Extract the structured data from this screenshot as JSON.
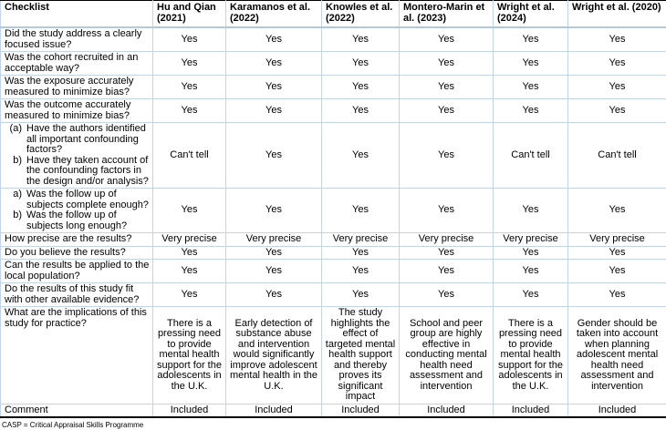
{
  "colors": {
    "grid_line": "#c2d4ea",
    "outer_border": "#000000",
    "background": "#ffffff",
    "text": "#000000"
  },
  "footnote": "CASP = Critical Appraisal Skills Programme",
  "table": {
    "columns": [
      "Checklist",
      "Hu and Qian (2021)",
      "Karamanos et al. (2022)",
      "Knowles et al. (2022)",
      "Montero-Marin et al. (2023)",
      "Wright et al. (2024)",
      "Wright et al. (2020)"
    ],
    "rows": [
      {
        "question": "Did the study address a clearly focused issue?",
        "values": [
          "Yes",
          "Yes",
          "Yes",
          "Yes",
          "Yes",
          "Yes"
        ]
      },
      {
        "question": "Was the cohort recruited in an acceptable way?",
        "values": [
          "Yes",
          "Yes",
          "Yes",
          "Yes",
          "Yes",
          "Yes"
        ]
      },
      {
        "question": "Was the exposure accurately measured to minimize bias?",
        "values": [
          "Yes",
          "Yes",
          "Yes",
          "Yes",
          "Yes",
          "Yes"
        ]
      },
      {
        "question": "Was the outcome accurately measured to minimize bias?",
        "values": [
          "Yes",
          "Yes",
          "Yes",
          "Yes",
          "Yes",
          "Yes"
        ]
      },
      {
        "question_list": [
          {
            "marker": "(a)",
            "text": "Have the authors identified all important confounding factors?"
          },
          {
            "marker": "b)",
            "text": "Have they taken account of the confounding factors in the design and/or analysis?"
          }
        ],
        "values": [
          "Can't tell",
          "Yes",
          "Yes",
          "Yes",
          "Can't tell",
          "Can't tell"
        ]
      },
      {
        "question_list": [
          {
            "marker": "a)",
            "text": "Was the follow up of subjects complete enough?"
          },
          {
            "marker": "b)",
            "text": "Was the follow up of subjects long enough?"
          }
        ],
        "values": [
          "Yes",
          "Yes",
          "Yes",
          "Yes",
          "Yes",
          "Yes"
        ]
      },
      {
        "question": "How precise are the results?",
        "values": [
          "Very precise",
          "Very precise",
          "Very precise",
          "Very precise",
          "Very precise",
          "Very precise"
        ]
      },
      {
        "question": "Do you believe the results?",
        "values": [
          "Yes",
          "Yes",
          "Yes",
          "Yes",
          "Yes",
          "Yes"
        ]
      },
      {
        "question": "Can the results be applied to the local population?",
        "values": [
          "Yes",
          "Yes",
          "Yes",
          "Yes",
          "Yes",
          "Yes"
        ]
      },
      {
        "question": "Do the results of this study fit with other available evidence?",
        "values": [
          "Yes",
          "Yes",
          "Yes",
          "Yes",
          "Yes",
          "Yes"
        ]
      },
      {
        "question": "What are the implications of this study for practice?",
        "values": [
          "There is a pressing need to provide mental health support for the adolescents in the U.K.",
          "Early detection of substance abuse and intervention would significantly improve adolescent mental health in the U.K.",
          "The study highlights the effect of targeted mental health support and thereby proves its significant impact",
          "School and peer group are highly effective in conducting mental health need assessment and intervention",
          "There is a pressing need to provide mental health support for the adolescents in the U.K.",
          "Gender should be taken into account when planning adolescent mental health need assessment and intervention"
        ]
      },
      {
        "question": "Comment",
        "values": [
          "Included",
          "Included",
          "Included",
          "Included",
          "Included",
          "Included"
        ]
      }
    ]
  }
}
